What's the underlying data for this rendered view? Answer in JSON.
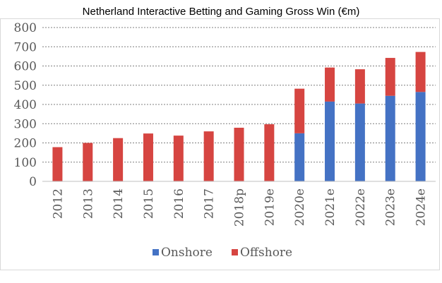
{
  "chart_data": {
    "type": "bar",
    "stacked": true,
    "title": "Netherland Interactive Betting and Gaming Gross Win (€m)",
    "categories": [
      "2012",
      "2013",
      "2014",
      "2015",
      "2016",
      "2017",
      "2018p",
      "2019e",
      "2020e",
      "2021e",
      "2022e",
      "2023e",
      "2024e"
    ],
    "series": [
      {
        "name": "Onshore",
        "color": "#4472c4",
        "values": [
          0,
          0,
          0,
          2,
          2,
          2,
          2,
          2,
          250,
          415,
          405,
          445,
          465
        ]
      },
      {
        "name": "Offshore",
        "color": "#d64541",
        "values": [
          178,
          200,
          225,
          247,
          236,
          258,
          277,
          295,
          232,
          177,
          178,
          197,
          208
        ]
      }
    ],
    "ylim": [
      0,
      800
    ],
    "yticks": [
      0,
      100,
      200,
      300,
      400,
      500,
      600,
      700,
      800
    ],
    "grid": true,
    "legend_position": "bottom"
  }
}
